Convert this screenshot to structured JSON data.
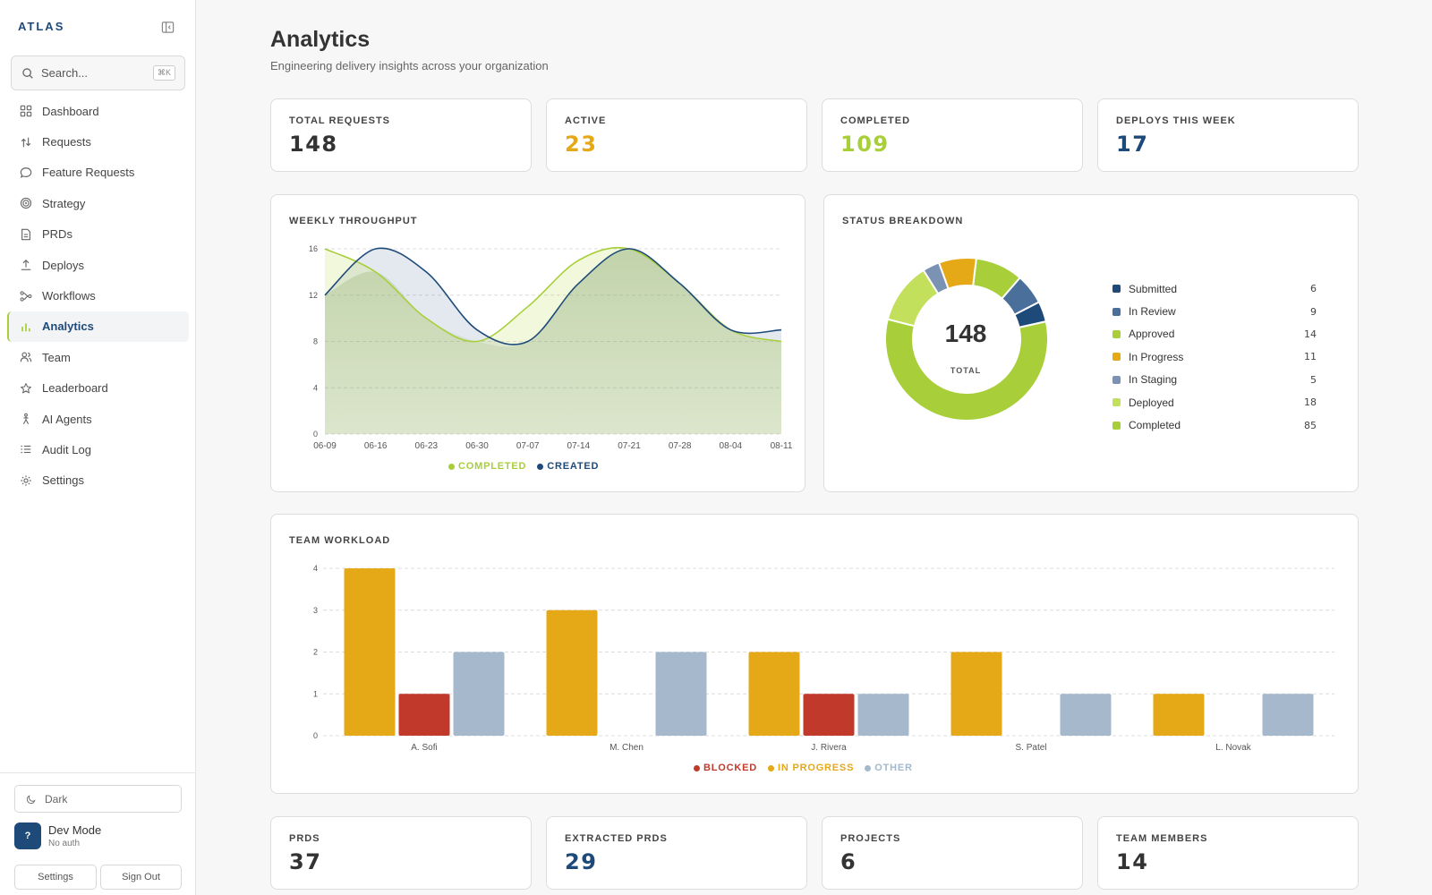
{
  "app": {
    "brand": "ATLAS"
  },
  "sidebar": {
    "search_placeholder": "Search...",
    "search_shortcut": "⌘K",
    "items": [
      {
        "label": "Dashboard",
        "icon": "grid-icon"
      },
      {
        "label": "Requests",
        "icon": "arrows-icon"
      },
      {
        "label": "Feature Requests",
        "icon": "chat-icon"
      },
      {
        "label": "Strategy",
        "icon": "target-icon"
      },
      {
        "label": "PRDs",
        "icon": "document-icon"
      },
      {
        "label": "Deploys",
        "icon": "upload-icon"
      },
      {
        "label": "Workflows",
        "icon": "workflow-icon"
      },
      {
        "label": "Analytics",
        "icon": "bar-chart-icon",
        "active": true
      },
      {
        "label": "Team",
        "icon": "users-icon"
      },
      {
        "label": "Leaderboard",
        "icon": "star-icon"
      },
      {
        "label": "AI Agents",
        "icon": "agent-icon"
      },
      {
        "label": "Audit Log",
        "icon": "list-icon"
      },
      {
        "label": "Settings",
        "icon": "gear-icon"
      }
    ],
    "theme_label": "Dark",
    "user": {
      "avatar_initial": "?",
      "name": "Dev Mode",
      "subtitle": "No auth"
    },
    "settings_button": "Settings",
    "signout_button": "Sign Out"
  },
  "header": {
    "title": "Analytics",
    "subtitle": "Engineering delivery insights across your organization"
  },
  "stats_top": [
    {
      "label": "TOTAL REQUESTS",
      "value": "148",
      "color": "#333333"
    },
    {
      "label": "ACTIVE",
      "value": "23",
      "color": "#e5a817"
    },
    {
      "label": "COMPLETED",
      "value": "109",
      "color": "#a8cf3a"
    },
    {
      "label": "DEPLOYS THIS WEEK",
      "value": "17",
      "color": "#1e4a7a"
    }
  ],
  "stats_bottom": [
    {
      "label": "PRDS",
      "value": "37",
      "color": "#333333"
    },
    {
      "label": "EXTRACTED PRDS",
      "value": "29",
      "color": "#1e4a7a"
    },
    {
      "label": "PROJECTS",
      "value": "6",
      "color": "#333333"
    },
    {
      "label": "TEAM MEMBERS",
      "value": "14",
      "color": "#333333"
    }
  ],
  "weekly": {
    "title": "WEEKLY THROUGHPUT",
    "legend_completed": "COMPLETED",
    "legend_created": "CREATED"
  },
  "status": {
    "title": "STATUS BREAKDOWN",
    "total": "148",
    "total_label": "TOTAL"
  },
  "workload": {
    "title": "TEAM WORKLOAD",
    "legend_blocked": "BLOCKED",
    "legend_in_progress": "IN PROGRESS",
    "legend_other": "OTHER"
  },
  "colors": {
    "completed": "#a8cf3a",
    "created": "#1e4a7a",
    "blocked": "#c0392b",
    "in_progress": "#e5a817",
    "other": "#a6b8cc"
  },
  "chart_data": [
    {
      "type": "line",
      "title": "WEEKLY THROUGHPUT",
      "x": [
        "06-09",
        "06-16",
        "06-23",
        "06-30",
        "07-07",
        "07-14",
        "07-21",
        "07-28",
        "08-04",
        "08-11"
      ],
      "ylim": [
        0,
        16
      ],
      "yticks": [
        0,
        4,
        8,
        12,
        16
      ],
      "grid": true,
      "legend": "bottom",
      "series": [
        {
          "name": "COMPLETED",
          "color": "#a8cf3a",
          "values": [
            16,
            14,
            10,
            8,
            11,
            15,
            16,
            13,
            9,
            8
          ]
        },
        {
          "name": "CREATED",
          "color": "#1e4a7a",
          "values": [
            12,
            16,
            14,
            9,
            8,
            13,
            16,
            13,
            9,
            9
          ]
        }
      ]
    },
    {
      "type": "pie",
      "title": "STATUS BREAKDOWN",
      "legend": "right",
      "slices": [
        {
          "label": "Submitted",
          "value": 6,
          "color": "#1e4a7a"
        },
        {
          "label": "In Review",
          "value": 9,
          "color": "#4a6f9a"
        },
        {
          "label": "Approved",
          "value": 14,
          "color": "#a8cf3a"
        },
        {
          "label": "In Progress",
          "value": 11,
          "color": "#e5a817"
        },
        {
          "label": "In Staging",
          "value": 5,
          "color": "#7b92b2"
        },
        {
          "label": "Deployed",
          "value": 18,
          "color": "#c2e05c"
        },
        {
          "label": "Completed",
          "value": 85,
          "color": "#a8cf3a"
        }
      ]
    },
    {
      "type": "bar",
      "title": "TEAM WORKLOAD",
      "categories": [
        "A. Sofi",
        "M. Chen",
        "J. Rivera",
        "S. Patel",
        "L. Novak"
      ],
      "ylim": [
        0,
        4
      ],
      "yticks": [
        0,
        1,
        2,
        3,
        4
      ],
      "grid": true,
      "legend": "bottom",
      "series": [
        {
          "name": "IN PROGRESS",
          "color": "#e5a817",
          "values": [
            4,
            3,
            2,
            2,
            1
          ]
        },
        {
          "name": "BLOCKED",
          "color": "#c0392b",
          "values": [
            1,
            0,
            1,
            0,
            0
          ]
        },
        {
          "name": "OTHER",
          "color": "#a6b8cc",
          "values": [
            2,
            2,
            1,
            1,
            1
          ]
        }
      ]
    }
  ]
}
